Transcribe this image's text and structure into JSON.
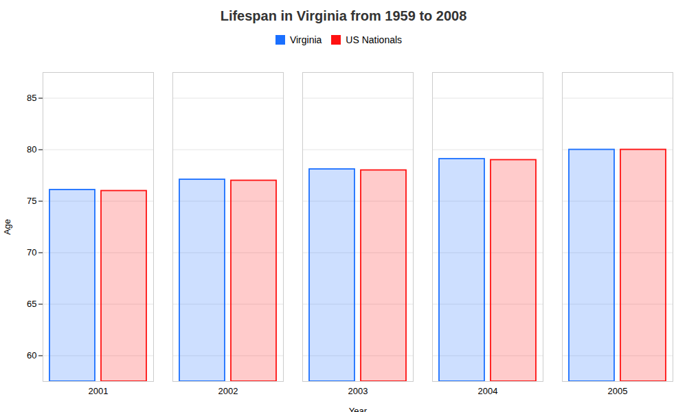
{
  "chart_data": {
    "type": "bar",
    "title": "Lifespan in Virginia from 1959 to 2008",
    "xlabel": "Year",
    "ylabel": "Age",
    "categories": [
      "2001",
      "2002",
      "2003",
      "2004",
      "2005"
    ],
    "series": [
      {
        "name": "Virginia",
        "color": "#1a6fff",
        "values": [
          76.1,
          77.1,
          78.1,
          79.1,
          80.0
        ]
      },
      {
        "name": "US Nationals",
        "color": "#ff1111",
        "values": [
          76.0,
          77.0,
          78.0,
          79.0,
          80.0
        ]
      }
    ],
    "ylim": [
      57.5,
      87.5
    ],
    "yticks": [
      60,
      65,
      70,
      75,
      80,
      85
    ],
    "grid": true,
    "legend": "top"
  }
}
